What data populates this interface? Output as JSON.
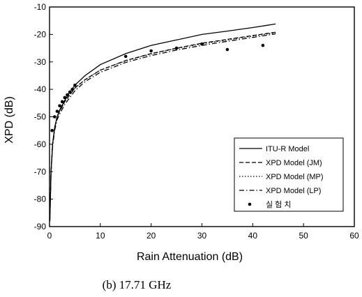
{
  "chart_data": {
    "type": "line",
    "title": "",
    "xlabel": "Rain Attenuation (dB)",
    "ylabel": "XPD (dB)",
    "xlim": [
      0,
      60
    ],
    "ylim": [
      -90,
      -10
    ],
    "xticks": [
      "0",
      "10",
      "20",
      "30",
      "40",
      "50",
      "60"
    ],
    "yticks": [
      "-10",
      "-20",
      "-30",
      "-40",
      "-50",
      "-60",
      "-70",
      "-80",
      "-90"
    ],
    "grid": false,
    "legend_position": "bottom-right",
    "caption": "(b) 17.71 GHz",
    "series": [
      {
        "name": "ITU-R Model",
        "style": "solid",
        "x": [
          0.05,
          0.3,
          0.6,
          1,
          1.5,
          2,
          3,
          4,
          5,
          7,
          10,
          15,
          20,
          25,
          30,
          35,
          40,
          44.5
        ],
        "y": [
          -88,
          -70,
          -60,
          -54,
          -50,
          -47.5,
          -44,
          -41,
          -38.5,
          -35,
          -31,
          -27,
          -24,
          -22,
          -20,
          -18.8,
          -17.5,
          -16.2
        ]
      },
      {
        "name": "XPD Model (JM)",
        "style": "dashed",
        "x": [
          0.05,
          0.3,
          0.6,
          1,
          1.5,
          2,
          3,
          4,
          5,
          7,
          10,
          15,
          20,
          25,
          30,
          35,
          40,
          44.5
        ],
        "y": [
          -88,
          -70,
          -60,
          -54,
          -50,
          -48,
          -44.5,
          -42,
          -39.5,
          -36.5,
          -33,
          -29.5,
          -27,
          -25,
          -23.2,
          -21.8,
          -20.4,
          -19.2
        ]
      },
      {
        "name": "XPD Model (MP)",
        "style": "dotted",
        "x": [
          0.05,
          0.3,
          0.6,
          1,
          1.5,
          2,
          3,
          4,
          5,
          7,
          10,
          15,
          20,
          25,
          30,
          35,
          40,
          44.5
        ],
        "y": [
          -88,
          -70,
          -60,
          -54,
          -50,
          -48,
          -44.5,
          -42,
          -39.5,
          -36.5,
          -33,
          -29.6,
          -27.1,
          -25.1,
          -23.4,
          -22,
          -20.6,
          -19.4
        ]
      },
      {
        "name": "XPD Model (LP)",
        "style": "dash-dot",
        "x": [
          0.05,
          0.3,
          0.6,
          1,
          1.5,
          2,
          3,
          4,
          5,
          7,
          10,
          15,
          20,
          25,
          30,
          35,
          40,
          44.5
        ],
        "y": [
          -88,
          -70,
          -61,
          -55,
          -51,
          -49,
          -45.5,
          -43,
          -40.5,
          -37.2,
          -33.8,
          -30.2,
          -27.7,
          -25.7,
          -24,
          -22.5,
          -21.1,
          -19.8
        ]
      },
      {
        "name": "실 험 치",
        "style": "points",
        "x": [
          0.5,
          1,
          1.5,
          2,
          2.5,
          3,
          3.5,
          4,
          4.5,
          5,
          15,
          20,
          25,
          30,
          35,
          42
        ],
        "y": [
          -55,
          -50,
          -48,
          -46,
          -44.5,
          -43,
          -42,
          -41,
          -40,
          -38.5,
          -28,
          -26,
          -25,
          -23.5,
          -25.5,
          -24
        ]
      }
    ]
  }
}
